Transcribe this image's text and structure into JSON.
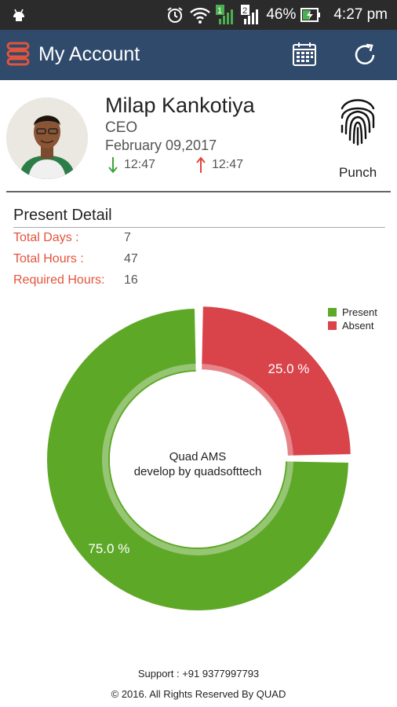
{
  "status_bar": {
    "battery": "46%",
    "time": "4:27 pm",
    "sim1": "1",
    "sim2": "2"
  },
  "app_bar": {
    "title": "My Account",
    "icons": [
      "menu-icon",
      "calendar-icon",
      "refresh-icon"
    ]
  },
  "profile": {
    "name": "Milap Kankotiya",
    "role": "CEO",
    "date": "February 09,2017",
    "in_time": "12:47",
    "out_time": "12:47",
    "punch_label": "Punch"
  },
  "present_detail": {
    "title": "Present Detail",
    "rows": [
      {
        "label": "Total Days :",
        "value": "7"
      },
      {
        "label": "Total Hours :",
        "value": "47"
      },
      {
        "label": "Required Hours:",
        "value": "16"
      }
    ]
  },
  "chart_data": {
    "type": "pie",
    "title": "",
    "center_text": [
      "Quad AMS",
      "develop by quadsofttech"
    ],
    "legend_position": "top-right",
    "series": [
      {
        "name": "Present",
        "value": 75.0,
        "label": "75.0 %",
        "color": "#5ea828"
      },
      {
        "name": "Absent",
        "value": 25.0,
        "label": "25.0 %",
        "color": "#d9434a"
      }
    ]
  },
  "footer": {
    "support": "Support : +91 9377997793",
    "copyright": "© 2016. All Rights Reserved By QUAD"
  },
  "colors": {
    "app_bar": "#2f4a6b",
    "label_accent": "#e2543b",
    "present": "#5ea828",
    "absent": "#d9434a"
  }
}
